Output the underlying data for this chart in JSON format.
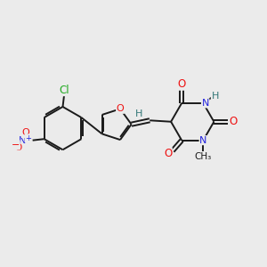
{
  "background_color": "#ebebeb",
  "bond_color": "#1a1a1a",
  "atom_colors": {
    "O": "#ee1111",
    "N": "#2222dd",
    "Cl": "#22aa22",
    "H": "#337777",
    "C": "#1a1a1a",
    "plus": "#2222dd",
    "minus": "#ee1111"
  },
  "figsize": [
    3.0,
    3.0
  ],
  "dpi": 100
}
